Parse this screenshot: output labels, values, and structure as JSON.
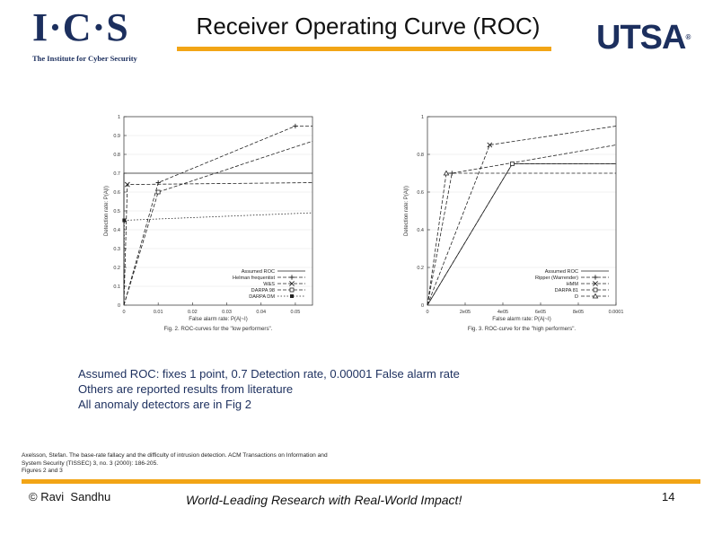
{
  "header": {
    "ics_logo_letters": "I·C·S",
    "ics_logo_tagline": "The Institute for Cyber Security",
    "title": "Receiver Operating Curve (ROC)",
    "utsa_logo": "UTSA",
    "utsa_mark": "®",
    "accent_color": "#f2a516",
    "brand_color": "#1c2f5e"
  },
  "chart_data": [
    {
      "type": "line",
      "xlabel": "False alarm rate: P(A|~I)",
      "ylabel": "Detection rate: P(A|I)",
      "caption": "Fig. 2.   ROC-curves for the \"low performers\".",
      "xlim": [
        0,
        0.055
      ],
      "ylim": [
        0,
        1
      ],
      "xticks": [
        0,
        0.01,
        0.02,
        0.03,
        0.04,
        0.05
      ],
      "xtick_labels": [
        "0",
        "0.01",
        "0.02",
        "0.03",
        "0.04",
        "0.05"
      ],
      "yticks": [
        0,
        0.1,
        0.2,
        0.3,
        0.4,
        0.5,
        0.6,
        0.7,
        0.8,
        0.9,
        1
      ],
      "ytick_labels": [
        "0",
        "0.1",
        "0.2",
        "0.3",
        "0.4",
        "0.5",
        "0.6",
        "0.7",
        "0.8",
        "0.9",
        "1"
      ],
      "legend_position": "bottom-right",
      "series": [
        {
          "name": "Assumed ROC",
          "style": "solid",
          "marker": "none",
          "x": [
            0,
            1e-05,
            0.055
          ],
          "y": [
            0,
            0.7,
            0.7
          ]
        },
        {
          "name": "Helman frequentist",
          "style": "dashed",
          "marker": "plus",
          "x": [
            0,
            0.01,
            0.05,
            0.055
          ],
          "y": [
            0,
            0.65,
            0.95,
            0.95
          ]
        },
        {
          "name": "W&S",
          "style": "dashed",
          "marker": "cross",
          "x": [
            0,
            0.001,
            0.055
          ],
          "y": [
            0,
            0.64,
            0.65
          ]
        },
        {
          "name": "DARPA 98",
          "style": "dashed",
          "marker": "square",
          "x": [
            0,
            0.01,
            0.055
          ],
          "y": [
            0,
            0.6,
            0.87
          ]
        },
        {
          "name": "DARPA DM",
          "style": "dotted",
          "marker": "filled-square",
          "x": [
            0,
            0.0001,
            0.055
          ],
          "y": [
            0,
            0.45,
            0.49
          ]
        }
      ]
    },
    {
      "type": "line",
      "xlabel": "False alarm rate: P(A|~I)",
      "ylabel": "Detection rate: P(A|I)",
      "caption": "Fig. 3.   ROC-curve for the \"high performers\".",
      "xlim": [
        0,
        0.0001
      ],
      "ylim": [
        0,
        1
      ],
      "xticks": [
        0,
        2e-05,
        4e-05,
        6e-05,
        8e-05,
        0.0001
      ],
      "xtick_labels": [
        "0",
        "2e05",
        "4e05",
        "6e05",
        "8e05",
        "0.0001"
      ],
      "yticks": [
        0,
        0.2,
        0.4,
        0.6,
        0.8,
        1
      ],
      "ytick_labels": [
        "0",
        "0.2",
        "0.4",
        "0.6",
        "0.8",
        "1"
      ],
      "legend_position": "bottom-right",
      "series": [
        {
          "name": "Assumed ROC",
          "style": "solid",
          "marker": "none",
          "x": [
            0,
            4.5e-05,
            0.0001
          ],
          "y": [
            0,
            0.75,
            0.75
          ]
        },
        {
          "name": "Ripper (Warrender)",
          "style": "dashed",
          "marker": "plus",
          "x": [
            0,
            1.3e-05,
            0.0001
          ],
          "y": [
            0,
            0.7,
            0.85
          ]
        },
        {
          "name": "HMM",
          "style": "dashed",
          "marker": "cross",
          "x": [
            0,
            3.3e-05,
            0.0001
          ],
          "y": [
            0,
            0.85,
            0.95
          ]
        },
        {
          "name": "DARPA 81",
          "style": "dashed",
          "marker": "square",
          "x": [
            0,
            4.5e-05,
            0.0001
          ],
          "y": [
            0,
            0.75,
            0.75
          ]
        },
        {
          "name": "D",
          "style": "dashed",
          "marker": "triangle",
          "x": [
            0,
            1e-05,
            0.0001
          ],
          "y": [
            0,
            0.7,
            0.7
          ]
        }
      ]
    }
  ],
  "notes": [
    "Assumed ROC: fixes 1 point, 0.7 Detection rate, 0.00001 False alarm rate",
    "Others are reported results from literature",
    "All anomaly detectors are in Fig 2"
  ],
  "reference": {
    "line1": "Axelsson, Stefan. The base-rate fallacy and the difficulty of intrusion detection. ACM Transactions on Information and",
    "line2": "System Security (TISSEC) 3, no. 3 (2000): 186-205.",
    "line3": "Figures 2 and 3"
  },
  "footer": {
    "author": "© Ravi  Sandhu",
    "tagline": "World-Leading Research with Real-World Impact!",
    "page_number": "14"
  }
}
